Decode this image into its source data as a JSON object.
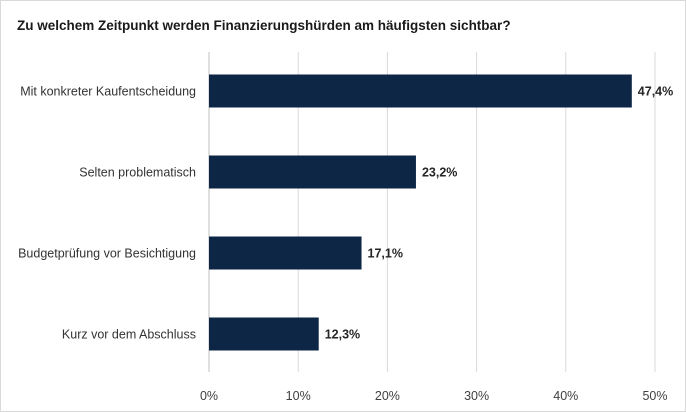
{
  "chart_data": {
    "type": "bar",
    "orientation": "horizontal",
    "title": "Zu welchem Zeitpunkt werden Finanzierungshürden am häufigsten sichtbar?",
    "categories": [
      "Mit konkreter Kaufentscheidung",
      "Selten problematisch",
      "Budgetprüfung vor Besichtigung",
      "Kurz vor dem Abschluss"
    ],
    "values": [
      47.4,
      23.2,
      17.1,
      12.3
    ],
    "value_labels": [
      "47,4%",
      "23,2%",
      "17,1%",
      "12,3%"
    ],
    "xlim": [
      0,
      50
    ],
    "x_ticks": [
      0,
      10,
      20,
      30,
      40,
      50
    ],
    "x_tick_labels": [
      "0%",
      "10%",
      "20%",
      "30%",
      "40%",
      "50%"
    ],
    "grid": "vertical",
    "bar_color": "#0d2646"
  }
}
